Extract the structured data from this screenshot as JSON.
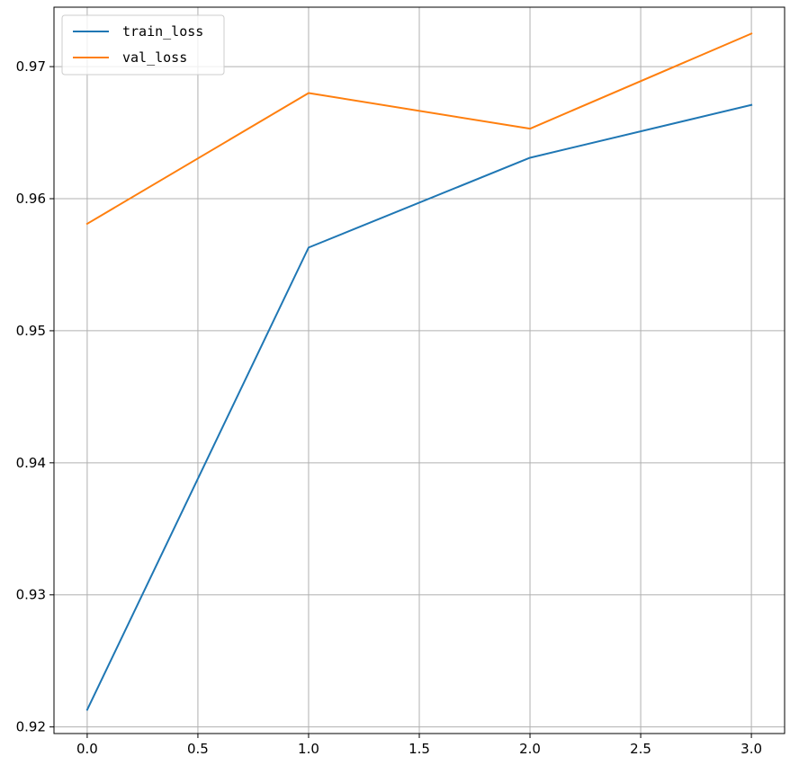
{
  "chart_data": {
    "type": "line",
    "title": "",
    "xlabel": "",
    "ylabel": "",
    "x": [
      0,
      1,
      2,
      3
    ],
    "xlim": [
      -0.15,
      3.15
    ],
    "ylim": [
      0.9195,
      0.9745
    ],
    "xticks": [
      0.0,
      0.5,
      1.0,
      1.5,
      2.0,
      2.5,
      3.0
    ],
    "xtick_labels": [
      "0.0",
      "0.5",
      "1.0",
      "1.5",
      "2.0",
      "2.5",
      "3.0"
    ],
    "yticks": [
      0.92,
      0.93,
      0.94,
      0.95,
      0.96,
      0.97
    ],
    "ytick_labels": [
      "0.92",
      "0.93",
      "0.94",
      "0.95",
      "0.96",
      "0.97"
    ],
    "grid": true,
    "legend_position": "top-left",
    "series": [
      {
        "name": "train_loss",
        "color": "#1f77b4",
        "values": [
          0.9213,
          0.9563,
          0.9631,
          0.9671
        ]
      },
      {
        "name": "val_loss",
        "color": "#ff7f0e",
        "values": [
          0.9581,
          0.968,
          0.9653,
          0.9725
        ]
      }
    ]
  }
}
